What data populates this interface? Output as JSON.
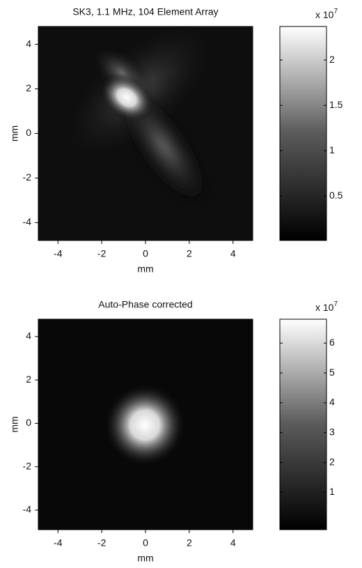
{
  "chart_data": [
    {
      "type": "heatmap",
      "title": "SK3, 1.1 MHz, 104 Element Array",
      "x_label": "mm",
      "y_label": "mm",
      "xlim": [
        -4.9,
        4.9
      ],
      "ylim": [
        -4.8,
        4.8
      ],
      "xticks": [
        -4,
        -2,
        0,
        2,
        4
      ],
      "yticks": [
        -4,
        -2,
        0,
        2,
        4
      ],
      "colormap": "gray",
      "clim": [
        0.01,
        2.37
      ],
      "cticks": [
        0.5,
        1,
        1.5,
        2
      ],
      "colorbar_scale_label": "x 10",
      "colorbar_scale_exponent": "7"
    },
    {
      "type": "heatmap",
      "title": "Auto-Phase corrected",
      "x_label": "mm",
      "y_label": "mm",
      "xlim": [
        -4.9,
        4.9
      ],
      "ylim": [
        -4.9,
        4.8
      ],
      "xticks": [
        -4,
        -2,
        0,
        2,
        4
      ],
      "yticks": [
        -4,
        -2,
        0,
        2,
        4
      ],
      "colormap": "gray",
      "clim": [
        -0.25,
        6.8
      ],
      "cticks": [
        1,
        2,
        3,
        4,
        5,
        6
      ],
      "colorbar_scale_label": "x 10",
      "colorbar_scale_exponent": "7"
    }
  ]
}
